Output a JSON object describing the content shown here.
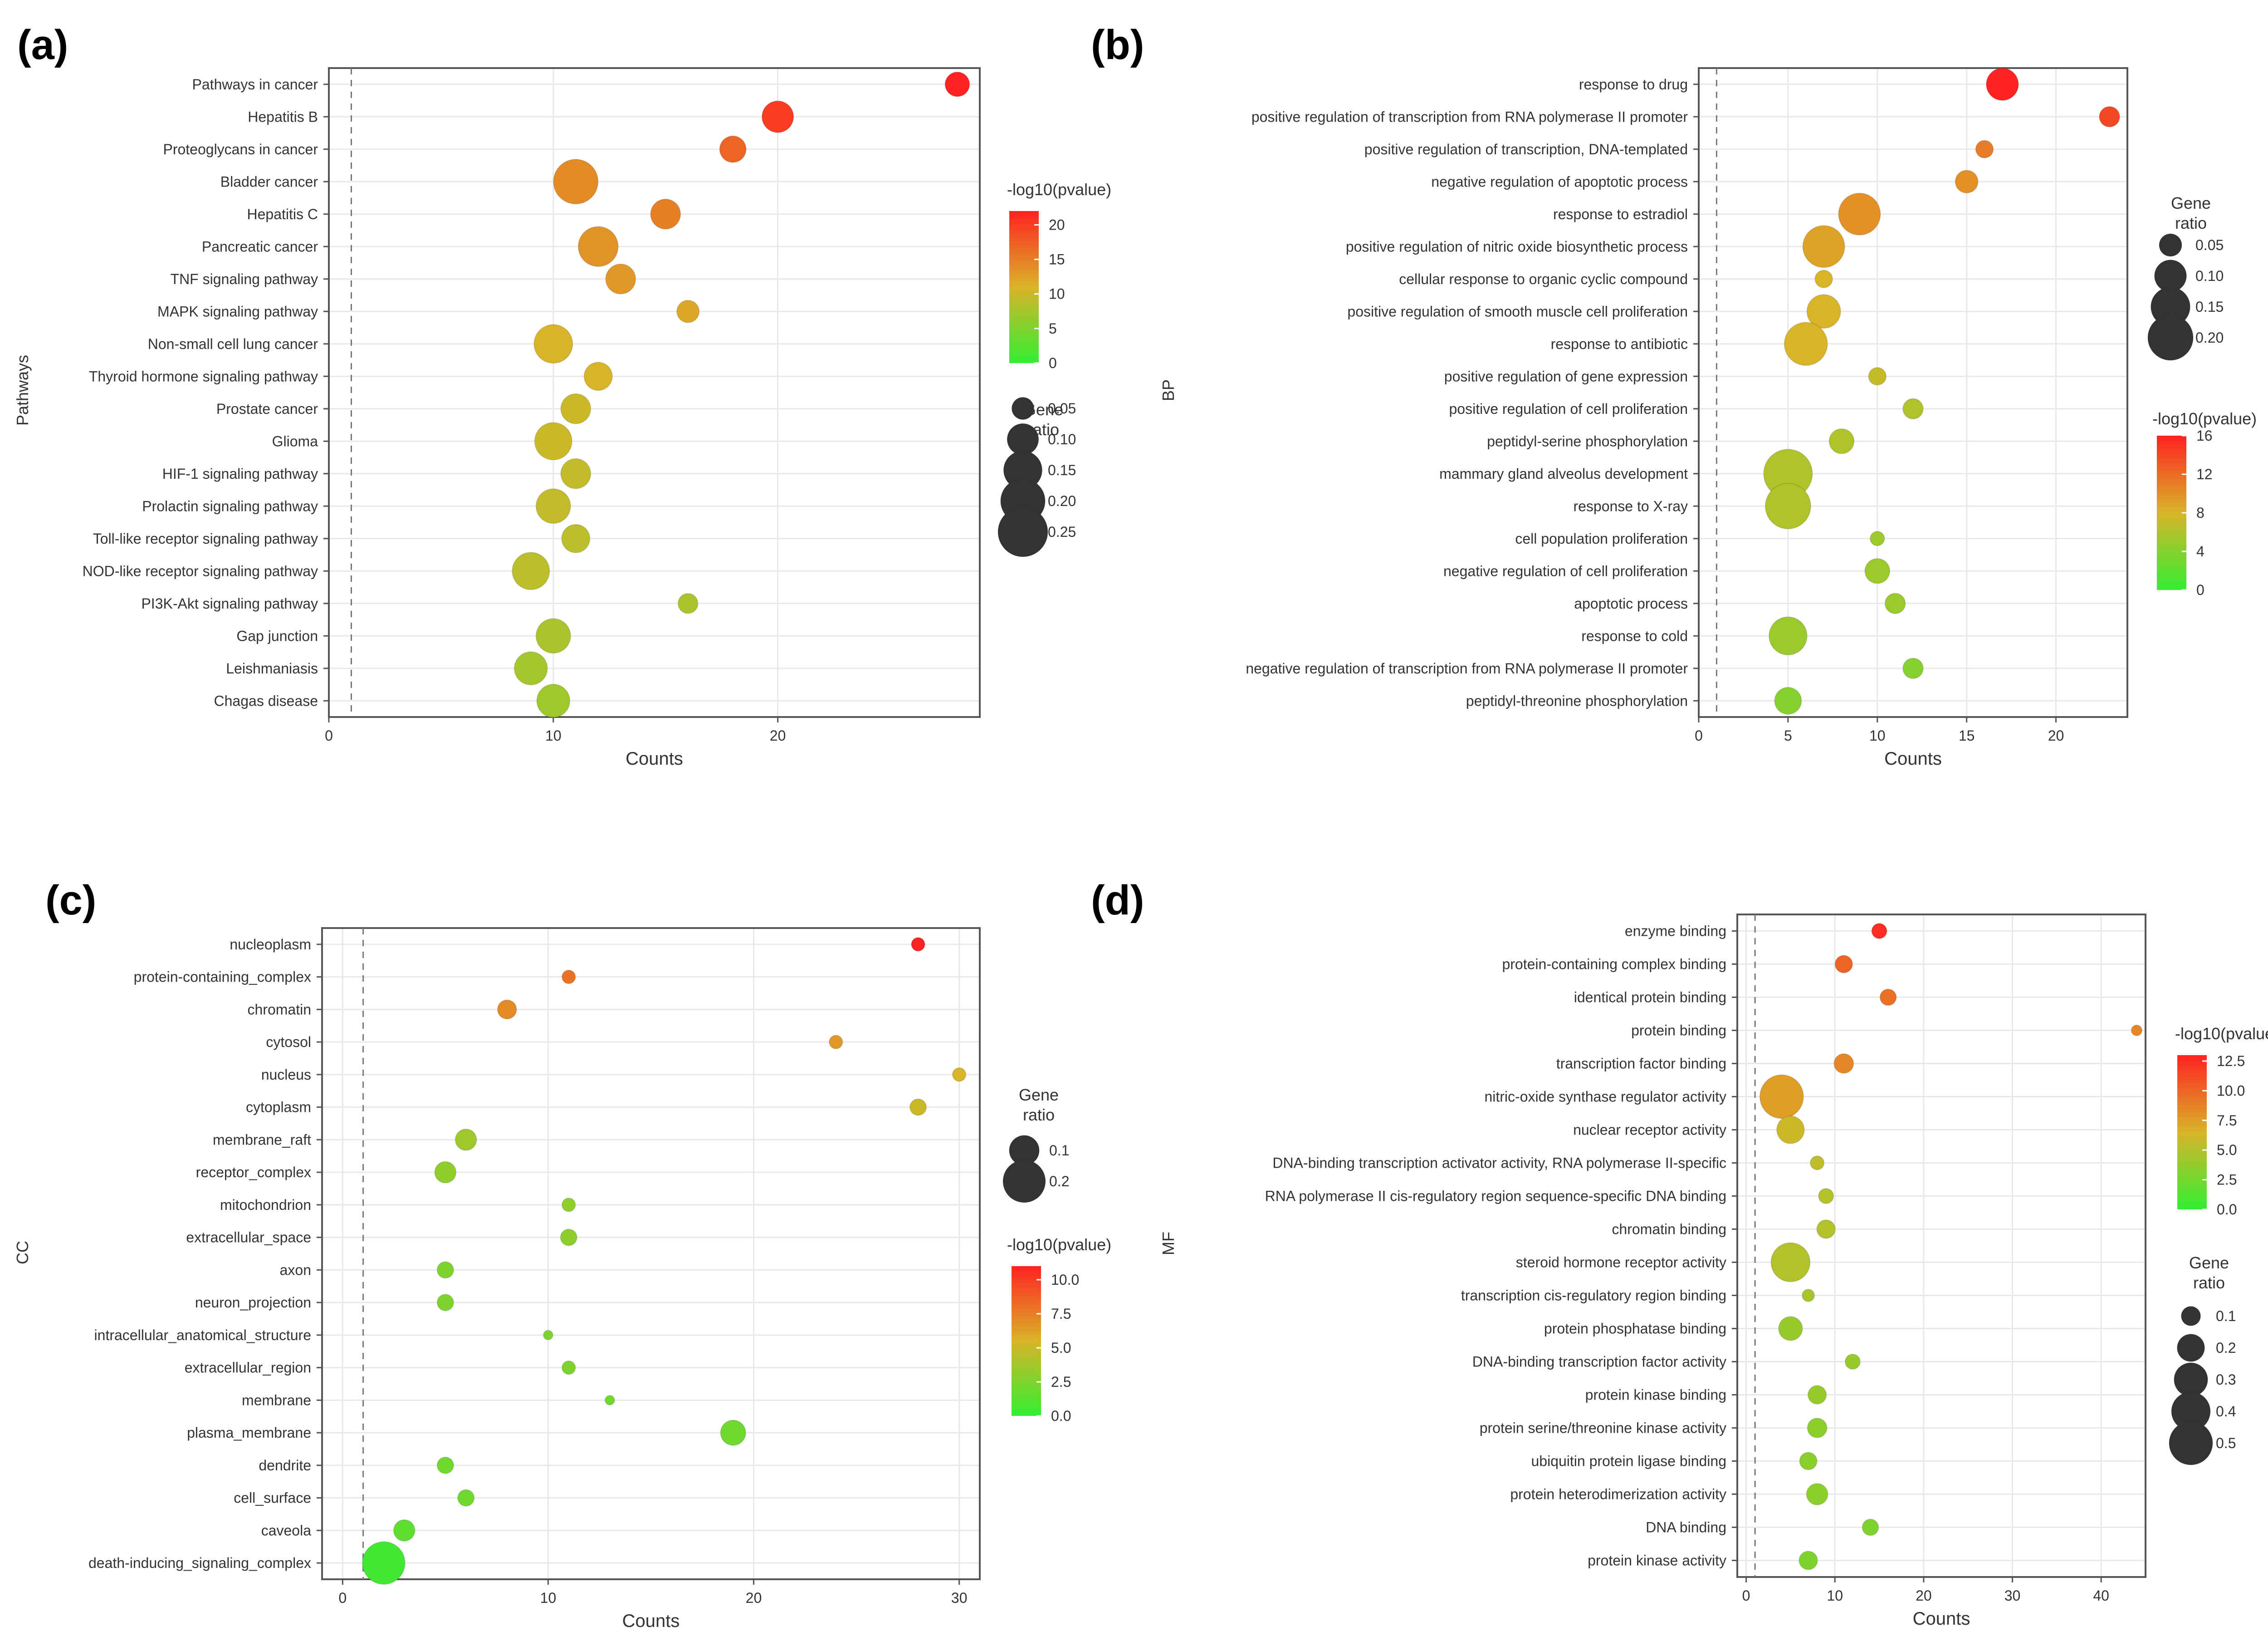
{
  "panel_labels": [
    "(a)",
    "(b)",
    "(c)",
    "(d)"
  ],
  "colors": {
    "gradient_low": "#33ee33",
    "gradient_mid": "#d9b428",
    "gradient_high": "#ff2222",
    "axis": "#555555",
    "grid": "#e8e8e8",
    "ref_line": "#777777",
    "text": "#333333"
  },
  "chart_data": [
    {
      "type": "scatter",
      "panel": "(a)",
      "ylabel": "Pathways",
      "xlabel": "Counts",
      "xlim": [
        0,
        29
      ],
      "xticks": [
        0,
        10,
        20
      ],
      "ref_line_x": 1,
      "grid": true,
      "legend_position": "right",
      "categories": [
        "Pathways in cancer",
        "Hepatitis B",
        "Proteoglycans in cancer",
        "Bladder cancer",
        "Hepatitis C",
        "Pancreatic cancer",
        "TNF signaling pathway",
        "MAPK signaling pathway",
        "Non-small cell lung cancer",
        "Thyroid hormone signaling pathway",
        "Prostate cancer",
        "Glioma",
        "HIF-1 signaling pathway",
        "Prolactin signaling pathway",
        "Toll-like receptor signaling pathway",
        "NOD-like receptor signaling pathway",
        "PI3K-Akt signaling pathway",
        "Gap junction",
        "Leishmaniasis",
        "Chagas disease"
      ],
      "counts": [
        28,
        20,
        18,
        11,
        15,
        12,
        13,
        16,
        10,
        12,
        11,
        10,
        11,
        10,
        11,
        9,
        16,
        10,
        9,
        10
      ],
      "gene_ratio": [
        0.06,
        0.1,
        0.07,
        0.2,
        0.09,
        0.16,
        0.09,
        0.05,
        0.15,
        0.08,
        0.09,
        0.14,
        0.09,
        0.12,
        0.08,
        0.14,
        0.04,
        0.12,
        0.11,
        0.11
      ],
      "neg_log10_pvalue": [
        22,
        20,
        17,
        14,
        15,
        13.5,
        13,
        12,
        11,
        11,
        10,
        10,
        9.5,
        9.5,
        9,
        9,
        8,
        8,
        7.5,
        7
      ],
      "color_legend": {
        "title": "-log10(pvalue)",
        "range": [
          0,
          22
        ],
        "ticks": [
          "20",
          "15",
          "10",
          "5",
          "0"
        ],
        "tick_values": [
          20,
          15,
          10,
          5,
          0
        ]
      },
      "size_legend": {
        "title": [
          "Gene",
          "ratio"
        ],
        "labels": [
          "0.05",
          "0.10",
          "0.15",
          "0.20",
          "0.25"
        ],
        "values": [
          0.05,
          0.1,
          0.15,
          0.2,
          0.25
        ]
      }
    },
    {
      "type": "scatter",
      "panel": "(b)",
      "ylabel": "BP",
      "xlabel": "Counts",
      "xlim": [
        0,
        24
      ],
      "xticks": [
        0,
        5,
        10,
        15,
        20
      ],
      "ref_line_x": 1,
      "grid": true,
      "legend_position": "right",
      "categories": [
        "response to drug",
        "positive regulation of transcription from RNA polymerase II promoter",
        "positive regulation of transcription, DNA-templated",
        "negative regulation of apoptotic process",
        "response to estradiol",
        "positive regulation of nitric oxide biosynthetic process",
        "cellular response to organic cyclic compound",
        "positive regulation of smooth muscle cell proliferation",
        "response to antibiotic",
        "positive regulation of gene expression",
        "positive regulation of cell proliferation",
        "peptidyl-serine phosphorylation",
        "mammary gland alveolus development",
        "response to X-ray",
        "cell population proliferation",
        "negative regulation of cell proliferation",
        "apoptotic process",
        "response to cold",
        "negative regulation of transcription from RNA polymerase II promoter",
        "peptidyl-threonine phosphorylation"
      ],
      "counts": [
        17,
        23,
        16,
        15,
        9,
        7,
        7,
        7,
        6,
        10,
        12,
        8,
        5,
        5,
        10,
        10,
        11,
        5,
        12,
        5
      ],
      "gene_ratio": [
        0.1,
        0.04,
        0.03,
        0.05,
        0.17,
        0.17,
        0.03,
        0.11,
        0.18,
        0.03,
        0.04,
        0.06,
        0.23,
        0.2,
        0.02,
        0.06,
        0.04,
        0.14,
        0.04,
        0.07
      ],
      "neg_log10_pvalue": [
        16,
        14,
        11,
        10,
        10,
        9,
        8,
        8,
        8,
        7,
        6,
        6,
        6,
        6,
        5,
        5,
        5,
        5,
        4,
        4
      ],
      "color_legend": {
        "title": "-log10(pvalue)",
        "range": [
          0,
          16
        ],
        "ticks": [
          "16",
          "12",
          "8",
          "4",
          "0"
        ],
        "tick_values": [
          16,
          12,
          8,
          4,
          0
        ]
      },
      "size_legend": {
        "title": [
          "Gene",
          "ratio"
        ],
        "labels": [
          "0.05",
          "0.10",
          "0.15",
          "0.20"
        ],
        "values": [
          0.05,
          0.1,
          0.15,
          0.2
        ]
      }
    },
    {
      "type": "scatter",
      "panel": "(c)",
      "ylabel": "CC",
      "xlabel": "Counts",
      "xlim": [
        -1,
        31
      ],
      "xticks": [
        0,
        10,
        20,
        30
      ],
      "ref_line_x": 1,
      "grid": true,
      "legend_position": "right",
      "categories": [
        "nucleoplasm",
        "protein-containing_complex",
        "chromatin",
        "cytosol",
        "nucleus",
        "cytoplasm",
        "membrane_raft",
        "receptor_complex",
        "mitochondrion",
        "extracellular_space",
        "axon",
        "neuron_projection",
        "intracellular_anatomical_structure",
        "extracellular_region",
        "membrane",
        "plasma_membrane",
        "dendrite",
        "cell_surface",
        "caveola",
        "death-inducing_signaling_complex"
      ],
      "counts": [
        28,
        11,
        8,
        24,
        30,
        28,
        6,
        5,
        11,
        11,
        5,
        5,
        10,
        11,
        13,
        19,
        5,
        6,
        3,
        2
      ],
      "gene_ratio": [
        0.02,
        0.02,
        0.04,
        0.02,
        0.02,
        0.03,
        0.05,
        0.05,
        0.02,
        0.03,
        0.03,
        0.03,
        0.01,
        0.02,
        0.01,
        0.07,
        0.03,
        0.03,
        0.05,
        0.2
      ],
      "neg_log10_pvalue": [
        11,
        8,
        7,
        6.5,
        5.5,
        5,
        3.5,
        3,
        3,
        3,
        2.5,
        2.5,
        2.5,
        2.5,
        2,
        2,
        2,
        2,
        1.5,
        0.5
      ],
      "color_legend": {
        "title": "-log10(pvalue)",
        "range": [
          0,
          11
        ],
        "ticks": [
          "10.0",
          "7.5",
          "5.0",
          "2.5",
          "0.0"
        ],
        "tick_values": [
          10,
          7.5,
          5,
          2.5,
          0
        ]
      },
      "size_legend": {
        "title": [
          "Gene",
          "ratio"
        ],
        "labels": [
          "0.1",
          "0.2"
        ],
        "values": [
          0.1,
          0.2
        ]
      }
    },
    {
      "type": "scatter",
      "panel": "(d)",
      "ylabel": "MF",
      "xlabel": "Counts",
      "xlim": [
        -1,
        45
      ],
      "xticks": [
        0,
        10,
        20,
        30,
        40
      ],
      "ref_line_x": 1,
      "grid": true,
      "legend_position": "right",
      "categories": [
        "enzyme binding",
        "protein-containing complex binding",
        "identical protein binding",
        "protein binding",
        "transcription factor binding",
        "nitric-oxide synthase regulator activity",
        "nuclear receptor activity",
        "DNA-binding transcription activator activity, RNA polymerase II-specific",
        "RNA polymerase II cis-regulatory region sequence-specific DNA binding",
        "chromatin binding",
        "steroid hormone receptor activity",
        "transcription cis-regulatory region binding",
        "protein phosphatase binding",
        "DNA-binding transcription factor activity",
        "protein kinase binding",
        "protein serine/threonine kinase activity",
        "ubiquitin protein ligase binding",
        "protein heterodimerization activity",
        "DNA binding",
        "protein kinase activity"
      ],
      "counts": [
        15,
        11,
        16,
        44,
        11,
        4,
        5,
        8,
        9,
        9,
        5,
        7,
        5,
        12,
        8,
        8,
        7,
        8,
        14,
        7
      ],
      "gene_ratio": [
        0.06,
        0.08,
        0.07,
        0.03,
        0.1,
        0.5,
        0.2,
        0.05,
        0.06,
        0.09,
        0.4,
        0.04,
        0.15,
        0.06,
        0.09,
        0.1,
        0.08,
        0.12,
        0.07,
        0.09
      ],
      "neg_log10_pvalue": [
        12.5,
        10,
        9.5,
        8.5,
        8.5,
        7.5,
        6,
        5.5,
        5,
        5,
        5,
        4.5,
        4,
        4,
        4,
        3.5,
        3.5,
        3.5,
        3,
        3
      ],
      "color_legend": {
        "title": "-log10(pvalue)",
        "range": [
          0,
          13
        ],
        "ticks": [
          "12.5",
          "10.0",
          "7.5",
          "5.0",
          "2.5",
          "0.0"
        ],
        "tick_values": [
          12.5,
          10,
          7.5,
          5,
          2.5,
          0
        ]
      },
      "size_legend": {
        "title": [
          "Gene",
          "ratio"
        ],
        "labels": [
          "0.1",
          "0.2",
          "0.3",
          "0.4",
          "0.5"
        ],
        "values": [
          0.1,
          0.2,
          0.3,
          0.4,
          0.5
        ]
      }
    }
  ]
}
